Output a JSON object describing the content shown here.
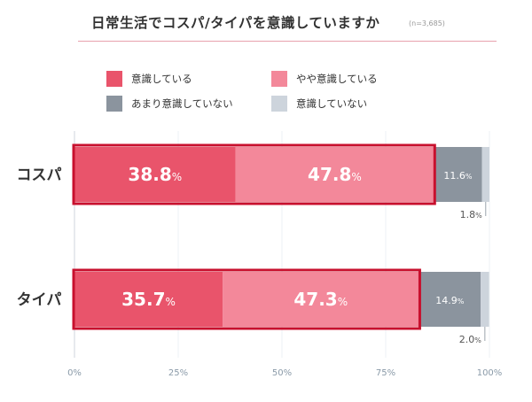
{
  "header": {
    "title": "日常生活でコスパ/タイパを意識していますか",
    "subtitle": "(n=3,685)"
  },
  "legend": [
    {
      "label": "意識している",
      "color": "#e9546b"
    },
    {
      "label": "やや意識している",
      "color": "#f3889a"
    },
    {
      "label": "あまり意識していない",
      "color": "#8b949e"
    },
    {
      "label": "意識していない",
      "color": "#cdd4dc"
    }
  ],
  "chart_data": {
    "type": "bar",
    "orientation": "horizontal",
    "stacked": true,
    "title": "日常生活でコスパ/タイパを意識していますか",
    "subtitle": "(n=3,685)",
    "categories": [
      "コスパ",
      "タイパ"
    ],
    "series": [
      {
        "name": "意識している",
        "values": [
          38.8,
          35.7
        ],
        "color": "#e9546b"
      },
      {
        "name": "やや意識している",
        "values": [
          47.8,
          47.3
        ],
        "color": "#f3889a"
      },
      {
        "name": "あまり意識していない",
        "values": [
          11.6,
          14.9
        ],
        "color": "#8b949e"
      },
      {
        "name": "意識していない",
        "values": [
          1.8,
          2.0
        ],
        "color": "#cdd4dc"
      }
    ],
    "value_labels": [
      [
        "38.8",
        "47.8",
        "11.6",
        "1.8"
      ],
      [
        "35.7",
        "47.3",
        "14.9",
        "2.0"
      ]
    ],
    "unit": "%",
    "xlim": [
      0,
      100
    ],
    "xticks": [
      "0%",
      "25%",
      "50%",
      "75%",
      "100%"
    ],
    "highlight": "意識している + やや意識している",
    "highlight_color": "#c8102e",
    "grid": true,
    "legend_position": "top"
  }
}
